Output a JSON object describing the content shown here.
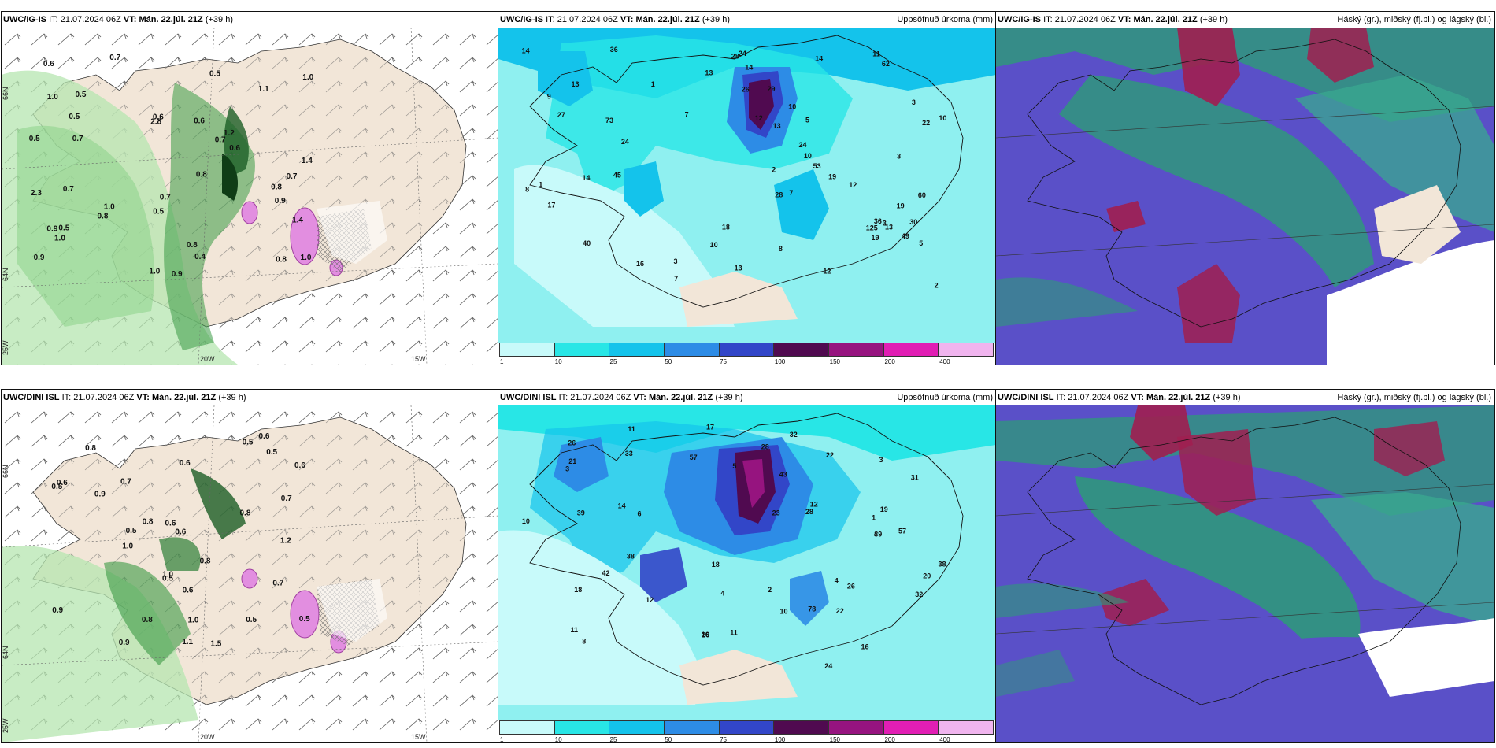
{
  "rows": [
    {
      "model_label": "UWC/IG-IS",
      "it_label": "IT:",
      "it_value": "21.07.2024 06Z",
      "vt_label": "VT:",
      "vt_value": "Mán. 22.júl. 21Z",
      "lead": "(+39 h)",
      "precip_title": "Uppsöfnuð úrkoma (mm)",
      "cloud_title": "Háský (gr.), miðský (fj.bl.) og lágský (bl.)"
    },
    {
      "model_label": "UWC/DINI ISL",
      "it_label": "IT:",
      "it_value": "21.07.2024 06Z",
      "vt_label": "VT:",
      "vt_value": "Mán. 22.júl. 21Z",
      "lead": "(+39 h)",
      "precip_title": "Uppsöfnuð úrkoma (mm)",
      "cloud_title": "Háský (gr.), miðský (fj.bl.) og lágský (bl.)"
    }
  ],
  "axis_labels": {
    "lon_20w": "20W",
    "lon_15w": "15W",
    "lat_66n": "66N",
    "lat_64n": "64N",
    "lon_25w": "25W"
  },
  "colorbar": {
    "ticks": [
      "1",
      "10",
      "25",
      "50",
      "75",
      "100",
      "150",
      "200",
      "400"
    ],
    "colors": [
      "#c8fafa",
      "#28e6e6",
      "#14c3eb",
      "#2d8ce6",
      "#3246c8",
      "#500a50",
      "#96147f",
      "#e11eb4",
      "#f0b4ee"
    ]
  },
  "colors": {
    "land": "#f2e6d8",
    "sea_precip": "#8ff0f0",
    "cloud_high": "#a01e50",
    "cloud_mid": "#5a50c8",
    "cloud_low": "#2d9b78"
  },
  "precip_numbers_top": [
    "27",
    "28",
    "40",
    "36",
    "30",
    "24",
    "28",
    "3",
    "60",
    "14",
    "49",
    "26",
    "17",
    "2",
    "3",
    "45",
    "125",
    "62",
    "24",
    "10",
    "7",
    "22",
    "53",
    "73",
    "29",
    "11",
    "3",
    "13",
    "9",
    "19",
    "19",
    "10",
    "13",
    "13",
    "16",
    "14",
    "14",
    "18",
    "36",
    "10",
    "12",
    "8",
    "13",
    "12",
    "7",
    "14",
    "1",
    "12",
    "8",
    "7",
    "5",
    "3",
    "2",
    "13",
    "5",
    "1",
    "10",
    "24",
    "19"
  ],
  "precip_numbers_bottom": [
    "33",
    "38",
    "38",
    "39",
    "32",
    "57",
    "28",
    "22",
    "20",
    "57",
    "78",
    "42",
    "24",
    "23",
    "18",
    "26",
    "22",
    "31",
    "16",
    "17",
    "10",
    "4",
    "7",
    "28",
    "39",
    "12",
    "21",
    "18",
    "11",
    "8",
    "32",
    "26",
    "16",
    "19",
    "12",
    "6",
    "5",
    "3",
    "11",
    "10",
    "4",
    "2",
    "1",
    "14",
    "43",
    "11",
    "3",
    "20"
  ],
  "wind_numbers_top": [
    "1.0",
    "0.5",
    "0.5",
    "0.8",
    "0.9",
    "0.7",
    "1.1",
    "0.5",
    "0.7",
    "1.0",
    "0.4",
    "0.8",
    "0.7",
    "1.0",
    "0.8",
    "0.5",
    "0.6",
    "1.0",
    "0.6",
    "1.0",
    "0.7",
    "1.4",
    "0.9",
    "0.8",
    "0.6",
    "0.7",
    "0.9",
    "0.6",
    "0.5",
    "0.8",
    "0.5",
    "1.2",
    "0.7",
    "2.3",
    "2.8",
    "1.4",
    "0.9",
    "1.0"
  ],
  "wind_numbers_bottom": [
    "0.5",
    "0.7",
    "0.5",
    "0.8",
    "0.6",
    "0.9",
    "1.0",
    "0.9",
    "0.5",
    "0.6",
    "0.6",
    "0.8",
    "1.1",
    "0.5",
    "0.7",
    "0.6",
    "1.5",
    "0.5",
    "1.0",
    "0.9",
    "0.8",
    "1.0",
    "0.6",
    "0.5",
    "0.7",
    "0.6",
    "0.8",
    "0.8",
    "0.5",
    "1.2",
    "0.6"
  ]
}
